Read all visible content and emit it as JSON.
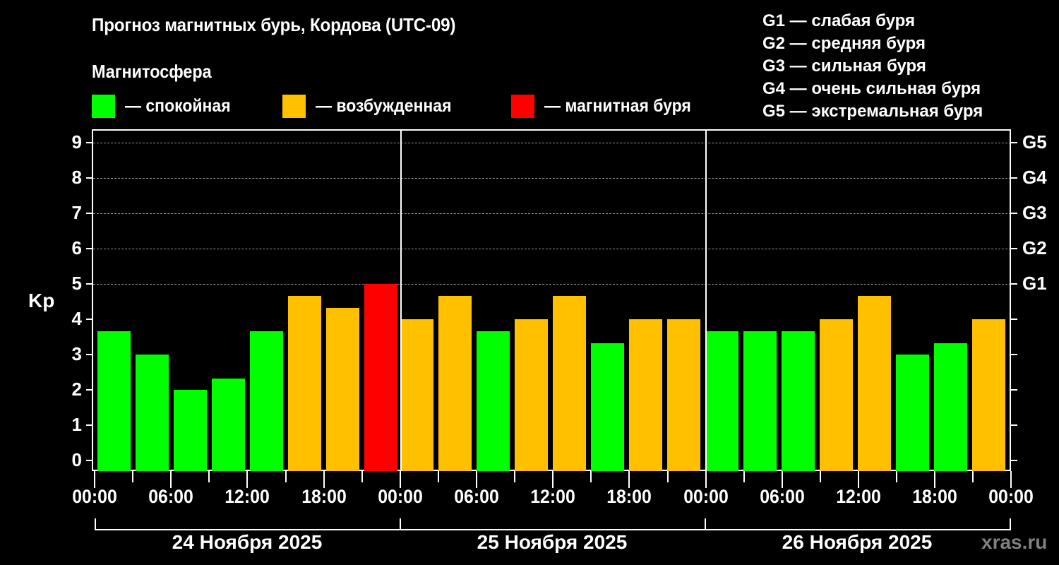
{
  "header": {
    "title": "Прогноз магнитных бурь, Кордова (UTC-09)",
    "subtitle": "Магнитосфера"
  },
  "legend": {
    "items": [
      {
        "label": "— спокойная",
        "color": "#00FF00"
      },
      {
        "label": "— возбужденная",
        "color": "#FFC000"
      },
      {
        "label": "— магнитная буря",
        "color": "#FF0000"
      }
    ]
  },
  "storm_scale": {
    "items": [
      "G1 — слабая буря",
      "G2 — средняя буря",
      "G3 — сильная буря",
      "G4 — очень сильная буря",
      "G5 — экстремальная буря"
    ]
  },
  "axes": {
    "ylabel": "Kp",
    "yticks": [
      "0",
      "1",
      "2",
      "3",
      "4",
      "5",
      "6",
      "7",
      "8",
      "9"
    ],
    "gticks": [
      "G1",
      "G2",
      "G3",
      "G4",
      "G5"
    ],
    "xticks": [
      "00:00",
      "06:00",
      "12:00",
      "18:00",
      "00:00",
      "06:00",
      "12:00",
      "18:00",
      "00:00",
      "06:00",
      "12:00",
      "18:00",
      "00:00"
    ],
    "days": [
      "24 Ноября 2025",
      "25 Ноября 2025",
      "26 Ноября 2025"
    ]
  },
  "watermark": "xras.ru",
  "chart_data": {
    "type": "bar",
    "title": "Прогноз магнитных бурь, Кордова (UTC-09)",
    "xlabel": "",
    "ylabel": "Kp",
    "ylim": [
      0,
      9
    ],
    "grid": true,
    "legend_position": "top",
    "categories": [
      "24.11 00-03",
      "24.11 03-06",
      "24.11 06-09",
      "24.11 09-12",
      "24.11 12-15",
      "24.11 15-18",
      "24.11 18-21",
      "24.11 21-24",
      "25.11 00-03",
      "25.11 03-06",
      "25.11 06-09",
      "25.11 09-12",
      "25.11 12-15",
      "25.11 15-18",
      "25.11 18-21",
      "25.11 21-24",
      "26.11 00-03",
      "26.11 03-06",
      "26.11 06-09",
      "26.11 09-12",
      "26.11 12-15",
      "26.11 15-18",
      "26.11 18-21",
      "26.11 21-24"
    ],
    "values": [
      3.67,
      3.0,
      2.0,
      2.33,
      3.67,
      4.67,
      4.33,
      5.0,
      4.0,
      4.67,
      3.67,
      4.0,
      4.67,
      3.33,
      4.0,
      4.0,
      3.67,
      3.67,
      3.67,
      4.0,
      4.67,
      3.0,
      3.33,
      4.0
    ],
    "colors": [
      "#00FF00",
      "#00FF00",
      "#00FF00",
      "#00FF00",
      "#00FF00",
      "#FFC000",
      "#FFC000",
      "#FF0000",
      "#FFC000",
      "#FFC000",
      "#00FF00",
      "#FFC000",
      "#FFC000",
      "#00FF00",
      "#FFC000",
      "#FFC000",
      "#00FF00",
      "#00FF00",
      "#00FF00",
      "#FFC000",
      "#FFC000",
      "#00FF00",
      "#00FF00",
      "#FFC000"
    ],
    "secondary_axis": {
      "labels": [
        "G1",
        "G2",
        "G3",
        "G4",
        "G5"
      ],
      "kp_levels": [
        5,
        6,
        7,
        8,
        9
      ]
    },
    "annotations": [
      "24 Ноября 2025",
      "25 Ноября 2025",
      "26 Ноября 2025"
    ]
  }
}
